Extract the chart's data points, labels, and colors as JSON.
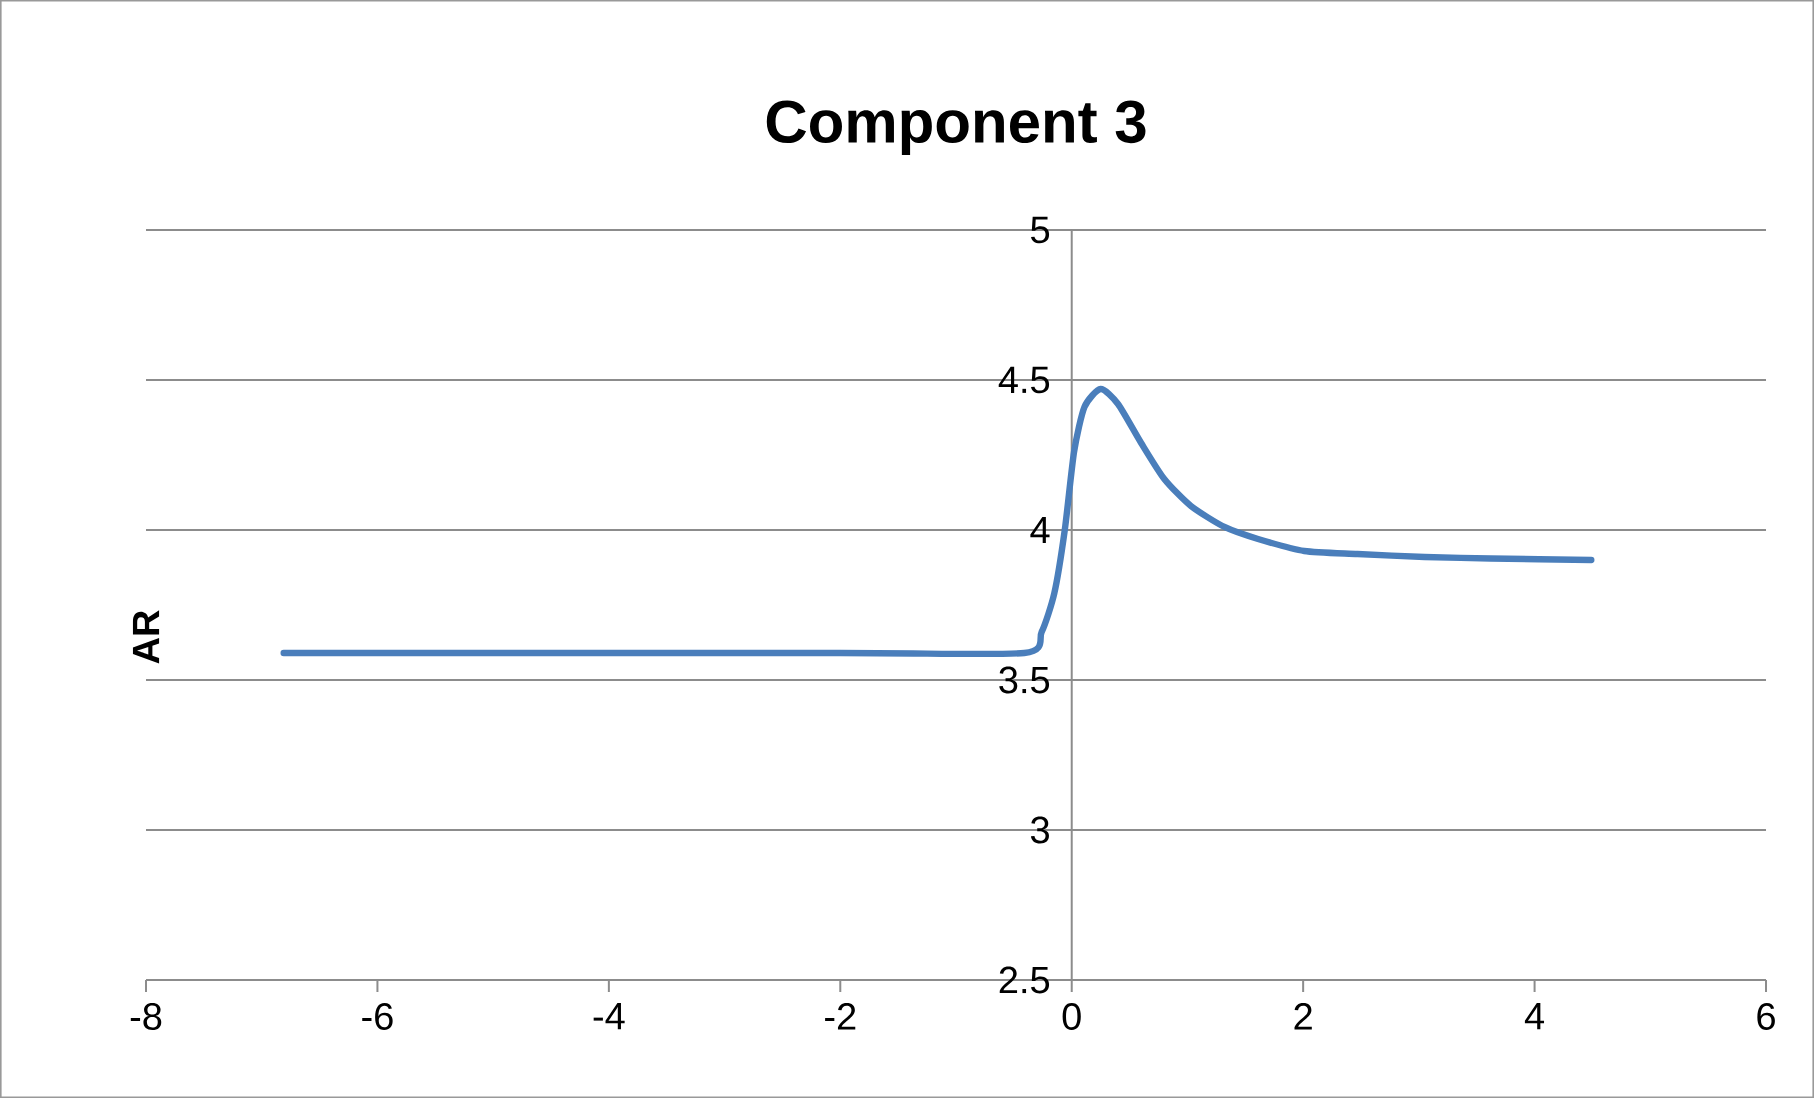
{
  "chart_data": {
    "type": "line",
    "title": "Component 3",
    "ylabel": "AR",
    "series": [
      {
        "color": "#4a7ebb",
        "x": [
          -6.81,
          -2.0,
          -0.41,
          -0.26,
          -0.15,
          -0.06,
          0.02,
          0.11,
          0.25,
          0.4,
          0.6,
          0.8,
          1.03,
          1.32,
          1.61,
          2.01,
          2.47,
          3.05,
          3.62,
          4.49
        ],
        "values": [
          3.59,
          3.59,
          3.59,
          3.66,
          3.79,
          4.0,
          4.26,
          4.41,
          4.47,
          4.42,
          4.29,
          4.17,
          4.08,
          4.01,
          3.97,
          3.93,
          3.92,
          3.91,
          3.905,
          3.9
        ]
      }
    ],
    "xlim": [
      -8,
      6
    ],
    "ylim": [
      2.5,
      5
    ],
    "xticks": [
      -8,
      -6,
      -4,
      -2,
      0,
      2,
      4,
      6
    ],
    "yticks": [
      2.5,
      3,
      3.5,
      4,
      4.5,
      5
    ],
    "grid": "y",
    "marker": "none",
    "line_style": "solid"
  }
}
